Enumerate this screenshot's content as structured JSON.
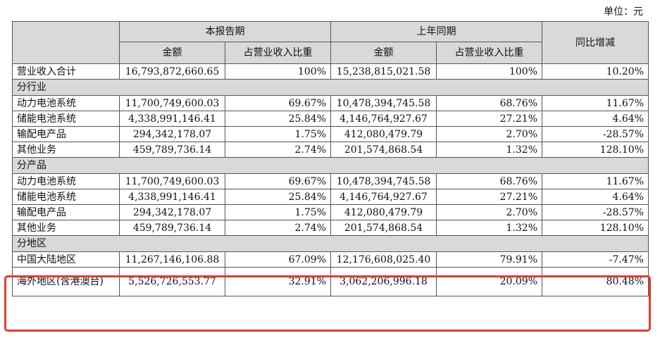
{
  "unit": "单位：元",
  "header": {
    "current_period": "本报告期",
    "prior_period": "上年同期",
    "yoy": "同比增减",
    "amount": "金额",
    "ratio": "占营业收入比重"
  },
  "total": {
    "label": "营业收入合计",
    "cur_amount": "16,793,872,660.65",
    "cur_ratio": "100%",
    "prev_amount": "15,238,815,021.58",
    "prev_ratio": "100%",
    "yoy": "10.20%"
  },
  "sections": [
    {
      "title": "分行业",
      "rows": [
        {
          "label": "动力电池系统",
          "cur_amount": "11,700,749,600.03",
          "cur_ratio": "69.67%",
          "prev_amount": "10,478,394,745.58",
          "prev_ratio": "68.76%",
          "yoy": "11.67%"
        },
        {
          "label": "储能电池系统",
          "cur_amount": "4,338,991,146.41",
          "cur_ratio": "25.84%",
          "prev_amount": "4,146,764,927.67",
          "prev_ratio": "27.21%",
          "yoy": "4.64%"
        },
        {
          "label": "输配电产品",
          "cur_amount": "294,342,178.07",
          "cur_ratio": "1.75%",
          "prev_amount": "412,080,479.79",
          "prev_ratio": "2.70%",
          "yoy": "-28.57%"
        },
        {
          "label": "其他业务",
          "cur_amount": "459,789,736.14",
          "cur_ratio": "2.74%",
          "prev_amount": "201,574,868.54",
          "prev_ratio": "1.32%",
          "yoy": "128.10%"
        }
      ]
    },
    {
      "title": "分产品",
      "rows": [
        {
          "label": "动力电池系统",
          "cur_amount": "11,700,749,600.03",
          "cur_ratio": "69.67%",
          "prev_amount": "10,478,394,745.58",
          "prev_ratio": "68.76%",
          "yoy": "11.67%"
        },
        {
          "label": "储能电池系统",
          "cur_amount": "4,338,991,146.41",
          "cur_ratio": "25.84%",
          "prev_amount": "4,146,764,927.67",
          "prev_ratio": "27.21%",
          "yoy": "4.64%"
        },
        {
          "label": "输配电产品",
          "cur_amount": "294,342,178.07",
          "cur_ratio": "1.75%",
          "prev_amount": "412,080,479.79",
          "prev_ratio": "2.70%",
          "yoy": "-28.57%"
        },
        {
          "label": "其他业务",
          "cur_amount": "459,789,736.14",
          "cur_ratio": "2.74%",
          "prev_amount": "201,574,868.54",
          "prev_ratio": "1.32%",
          "yoy": "128.10%"
        }
      ]
    },
    {
      "title": "分地区",
      "rows": [
        {
          "label": "中国大陆地区",
          "cur_amount": "11,267,146,106.88",
          "cur_ratio": "67.09%",
          "prev_amount": "12,176,608,025.40",
          "prev_ratio": "79.91%",
          "yoy": "-7.47%"
        },
        {
          "label": "海外地区(含港澳台)",
          "cur_amount": "5,526,726,553.77",
          "cur_ratio": "32.91%",
          "prev_amount": "3,062,206,996.18",
          "prev_ratio": "20.09%",
          "yoy": "80.48%"
        }
      ]
    }
  ],
  "highlight_color": "#e53935",
  "header_bg": "#d9d9d9"
}
